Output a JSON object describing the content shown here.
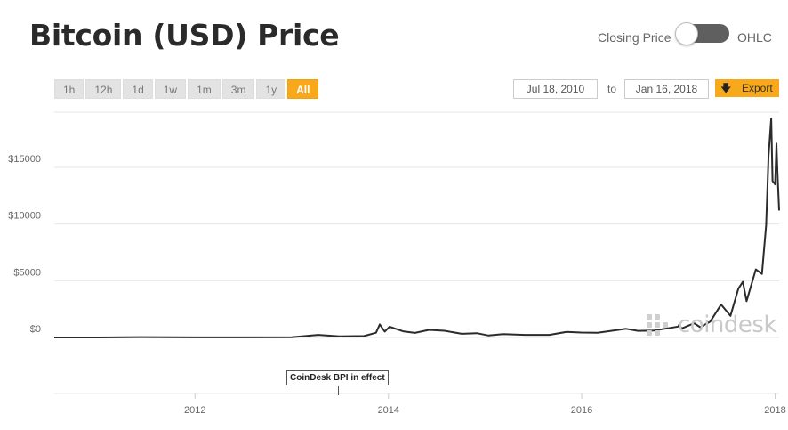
{
  "header": {
    "title": "Bitcoin (USD) Price",
    "toggle_left_label": "Closing Price",
    "toggle_right_label": "OHLC"
  },
  "range_buttons": [
    {
      "label": "1h",
      "active": false
    },
    {
      "label": "12h",
      "active": false
    },
    {
      "label": "1d",
      "active": false
    },
    {
      "label": "1w",
      "active": false
    },
    {
      "label": "1m",
      "active": false
    },
    {
      "label": "3m",
      "active": false
    },
    {
      "label": "1y",
      "active": false
    },
    {
      "label": "All",
      "active": true
    }
  ],
  "date_range": {
    "from": "Jul 18, 2010",
    "to_label": "to",
    "to": "Jan 16, 2018"
  },
  "export": {
    "label": "Export",
    "icon": "download-arrow-icon"
  },
  "watermark": {
    "text": "coindesk",
    "icon": "coindesk-logo-icon"
  },
  "colors": {
    "accent": "#f7a81b",
    "line": "#2b2b2b",
    "grid": "#e6e6e6",
    "toggle_track": "#5f5f5f"
  },
  "chart_data": {
    "type": "line",
    "title": "Bitcoin (USD) Price",
    "xlabel": "",
    "ylabel": "",
    "ylim": [
      0,
      18000
    ],
    "grid": true,
    "y_ticks": [
      "$0",
      "$5000",
      "$10000",
      "$15000"
    ],
    "y_tick_values": [
      0,
      5000,
      10000,
      15000
    ],
    "x_ticks": [
      "2012",
      "2014",
      "2016",
      "2018"
    ],
    "x_tick_values": [
      "2012-01-01",
      "2014-01-01",
      "2016-01-01",
      "2018-01-01"
    ],
    "annotation": {
      "label": "CoinDesk BPI in effect",
      "x": "2013-06-01"
    },
    "series": [
      {
        "points": [
          [
            "2010-07-18",
            0.09
          ],
          [
            "2010-12-31",
            0.3
          ],
          [
            "2011-06-08",
            30
          ],
          [
            "2011-12-31",
            4.7
          ],
          [
            "2012-06-30",
            6.7
          ],
          [
            "2012-12-31",
            13.5
          ],
          [
            "2013-04-10",
            230
          ],
          [
            "2013-06-30",
            97
          ],
          [
            "2013-10-01",
            125
          ],
          [
            "2013-11-15",
            420
          ],
          [
            "2013-11-29",
            1147
          ],
          [
            "2013-12-18",
            520
          ],
          [
            "2014-01-05",
            950
          ],
          [
            "2014-02-25",
            540
          ],
          [
            "2014-04-11",
            400
          ],
          [
            "2014-06-03",
            670
          ],
          [
            "2014-08-01",
            590
          ],
          [
            "2014-10-05",
            320
          ],
          [
            "2014-12-01",
            380
          ],
          [
            "2015-01-14",
            170
          ],
          [
            "2015-03-10",
            290
          ],
          [
            "2015-06-01",
            225
          ],
          [
            "2015-09-01",
            230
          ],
          [
            "2015-11-04",
            490
          ],
          [
            "2015-12-31",
            430
          ],
          [
            "2016-03-01",
            420
          ],
          [
            "2016-06-17",
            760
          ],
          [
            "2016-08-01",
            580
          ],
          [
            "2016-10-01",
            610
          ],
          [
            "2016-12-31",
            960
          ],
          [
            "2017-01-04",
            1150
          ],
          [
            "2017-01-12",
            780
          ],
          [
            "2017-03-01",
            1250
          ],
          [
            "2017-03-24",
            900
          ],
          [
            "2017-05-01",
            1400
          ],
          [
            "2017-06-11",
            2900
          ],
          [
            "2017-07-16",
            1900
          ],
          [
            "2017-08-15",
            4300
          ],
          [
            "2017-09-01",
            4900
          ],
          [
            "2017-09-15",
            3200
          ],
          [
            "2017-10-20",
            6000
          ],
          [
            "2017-11-12",
            5600
          ],
          [
            "2017-11-28",
            9900
          ],
          [
            "2017-12-07",
            16000
          ],
          [
            "2017-12-17",
            19300
          ],
          [
            "2017-12-22",
            13800
          ],
          [
            "2018-01-01",
            13500
          ],
          [
            "2018-01-06",
            17100
          ],
          [
            "2018-01-10",
            14400
          ],
          [
            "2018-01-16",
            11200
          ]
        ]
      }
    ]
  }
}
